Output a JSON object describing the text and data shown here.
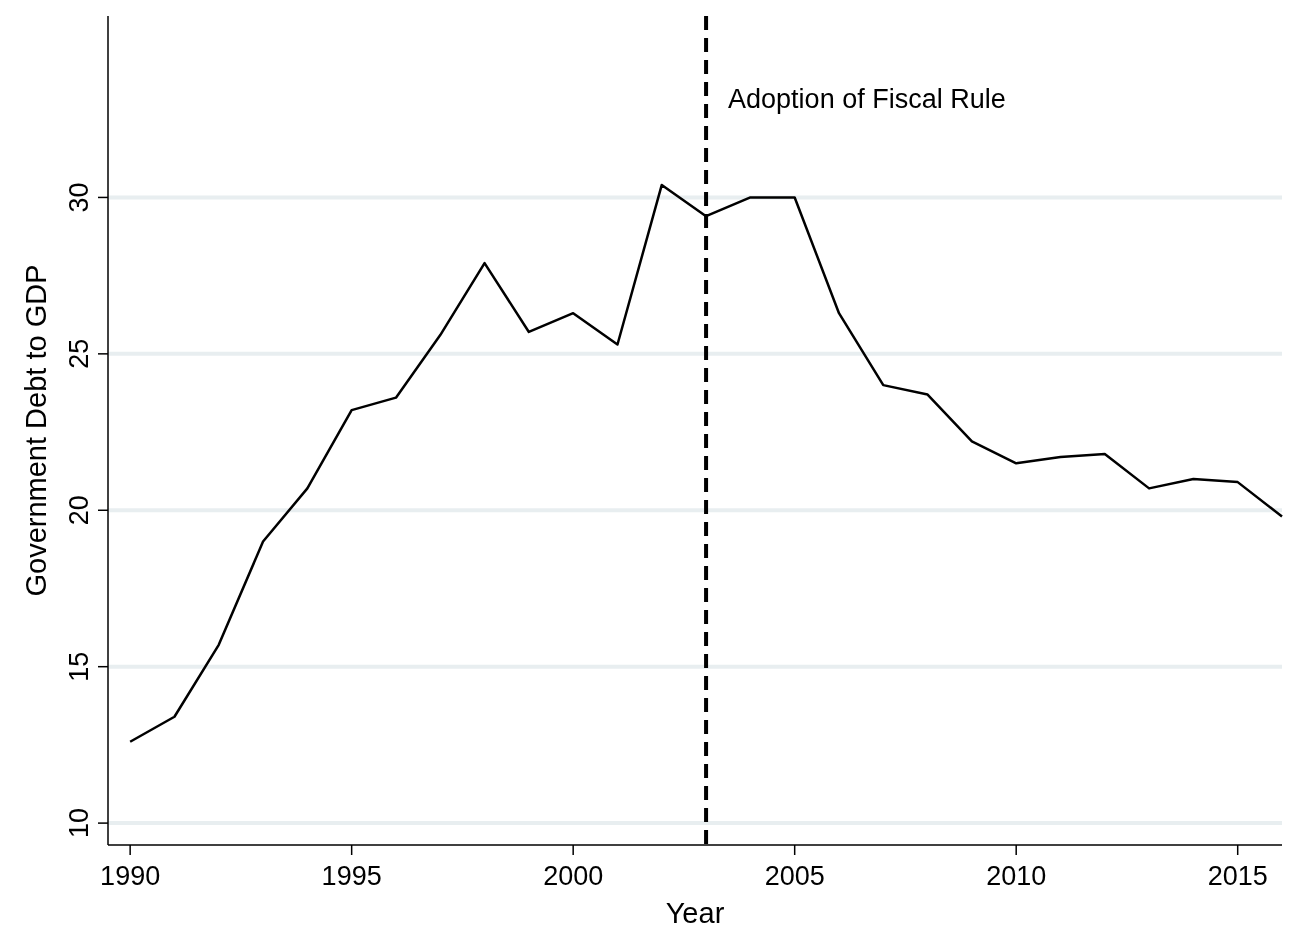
{
  "chart_data": {
    "type": "line",
    "xlabel": "Year",
    "ylabel": "Government Debt to GDP",
    "x": [
      1990,
      1991,
      1992,
      1993,
      1994,
      1995,
      1996,
      1997,
      1998,
      1999,
      2000,
      2001,
      2002,
      2003,
      2004,
      2005,
      2006,
      2007,
      2008,
      2009,
      2010,
      2011,
      2012,
      2013,
      2014,
      2015,
      2016
    ],
    "series": [
      {
        "color": "#000000",
        "values": [
          12.6,
          13.4,
          15.7,
          19.0,
          20.7,
          23.2,
          23.6,
          25.6,
          27.9,
          25.7,
          26.3,
          25.3,
          30.4,
          29.4,
          30.0,
          30.0,
          26.3,
          24.0,
          23.7,
          22.2,
          21.5,
          21.7,
          21.8,
          20.7,
          21.0,
          20.9,
          19.8
        ]
      }
    ],
    "xlim": [
      1989.5,
      2016
    ],
    "xticks": [
      1990,
      1995,
      2000,
      2005,
      2010,
      2015
    ],
    "ylim": [
      9.3,
      35.8
    ],
    "yticks": [
      10,
      15,
      20,
      25,
      30
    ],
    "grid": "y",
    "line_style": "solid",
    "marker": "none",
    "ref_lines": [
      {
        "axis": "x",
        "value": 2003,
        "label": "Adoption of Fiscal Rule",
        "color": "#000000",
        "line_style": "dashed"
      }
    ]
  }
}
